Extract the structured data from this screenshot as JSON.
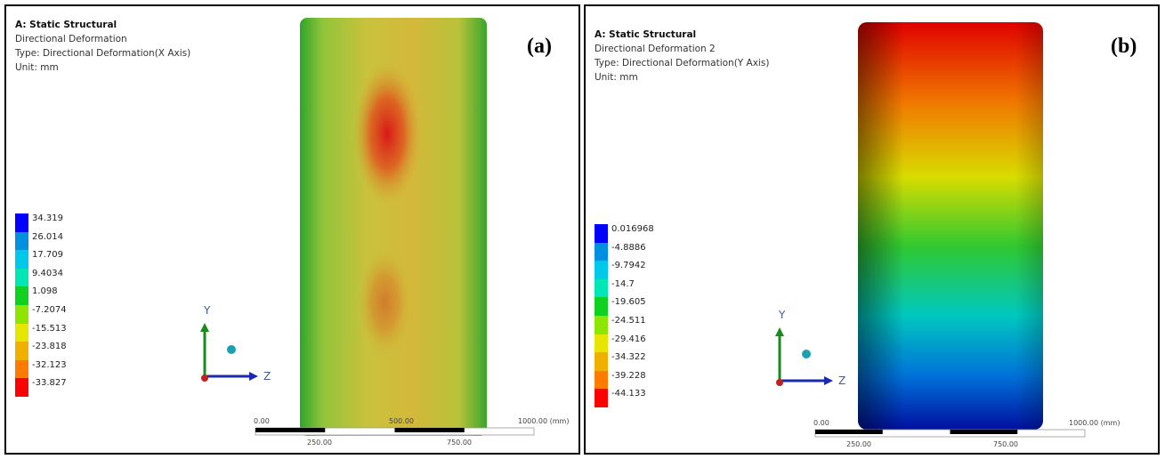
{
  "panels": [
    {
      "label": "(a)",
      "header": [
        "A: Static Structural",
        "Directional Deformation",
        "Type: Directional Deformation(X Axis)",
        "Unit: mm"
      ],
      "legend": [
        "34.319",
        "26.014",
        "17.709",
        "9.4034",
        "1.098",
        "-7.2074",
        "-15.513",
        "-23.818",
        "-32.123",
        "-33.827"
      ],
      "triad": {
        "y": "Y",
        "z": "Z"
      },
      "scale": {
        "top": [
          "0.00",
          "500.00",
          "1000.00 (mm)"
        ],
        "bottom": [
          "250.00",
          "750.00"
        ]
      }
    },
    {
      "label": "(b)",
      "header": [
        "A: Static Structural",
        "Directional Deformation 2",
        "Type: Directional Deformation(Y Axis)",
        "Unit: mm"
      ],
      "legend": [
        "0.016968",
        "-4.8886",
        "-9.7942",
        "-14.7",
        "-19.605",
        "-24.511",
        "-29.416",
        "-34.322",
        "-39.228",
        "-44.133"
      ],
      "triad": {
        "y": "Y",
        "z": "Z"
      },
      "scale": {
        "top": [
          "0.00",
          "1000.00 (mm)"
        ],
        "bottom": [
          "250.00",
          "750.00"
        ]
      }
    }
  ]
}
